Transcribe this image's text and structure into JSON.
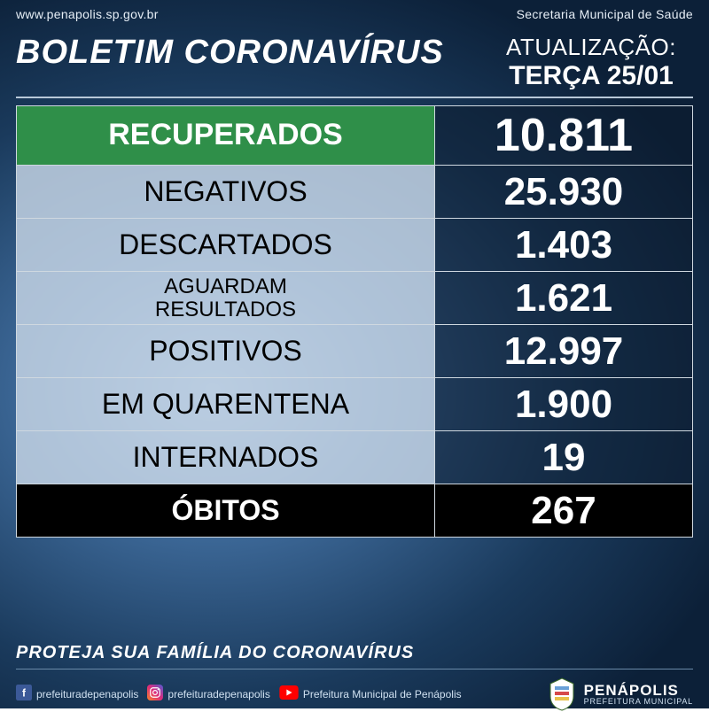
{
  "colors": {
    "green": "#2f8f49",
    "black": "#000000",
    "white": "#ffffff",
    "label_bg": "rgba(200,215,230,0.82)",
    "value_bg": "rgba(12,28,46,0.55)",
    "border": "#cfd8e0",
    "fb": "#3b5998",
    "ig_a": "#f58529",
    "ig_b": "#dd2a7b",
    "ig_c": "#515bd4",
    "yt": "#ff0000"
  },
  "header": {
    "url": "www.penapolis.sp.gov.br",
    "department": "Secretaria Municipal de Saúde",
    "title": "BOLETIM CORONAVÍRUS",
    "update_label": "ATUALIZAÇÃO:",
    "update_date": "TERÇA 25/01"
  },
  "rows": [
    {
      "label": "RECUPERADOS",
      "value": "10.811",
      "kind": "highlight",
      "height": 66
    },
    {
      "label": "NEGATIVOS",
      "value": "25.930",
      "kind": "normal",
      "height": 60
    },
    {
      "label": "DESCARTADOS",
      "value": "1.403",
      "kind": "normal",
      "height": 60
    },
    {
      "label": "AGUARDAM\nRESULTADOS",
      "value": "1.621",
      "kind": "small",
      "height": 60
    },
    {
      "label": "POSITIVOS",
      "value": "12.997",
      "kind": "normal",
      "height": 60
    },
    {
      "label": "EM QUARENTENA",
      "value": "1.900",
      "kind": "normal",
      "height": 60
    },
    {
      "label": "INTERNADOS",
      "value": "19",
      "kind": "normal",
      "height": 60
    },
    {
      "label": "ÓBITOS",
      "value": "267",
      "kind": "dark",
      "height": 60
    }
  ],
  "footer": {
    "tagline": "PROTEJA SUA FAMÍLIA DO CORONAVÍRUS",
    "socials": [
      {
        "icon": "facebook",
        "handle": "prefeituradepenapolis"
      },
      {
        "icon": "instagram",
        "handle": "prefeituradepenapolis"
      },
      {
        "icon": "youtube",
        "handle": "Prefeitura Municipal de Penápolis"
      }
    ],
    "brand_name": "PENÁPOLIS",
    "brand_sub": "PREFEITURA  MUNICIPAL"
  }
}
